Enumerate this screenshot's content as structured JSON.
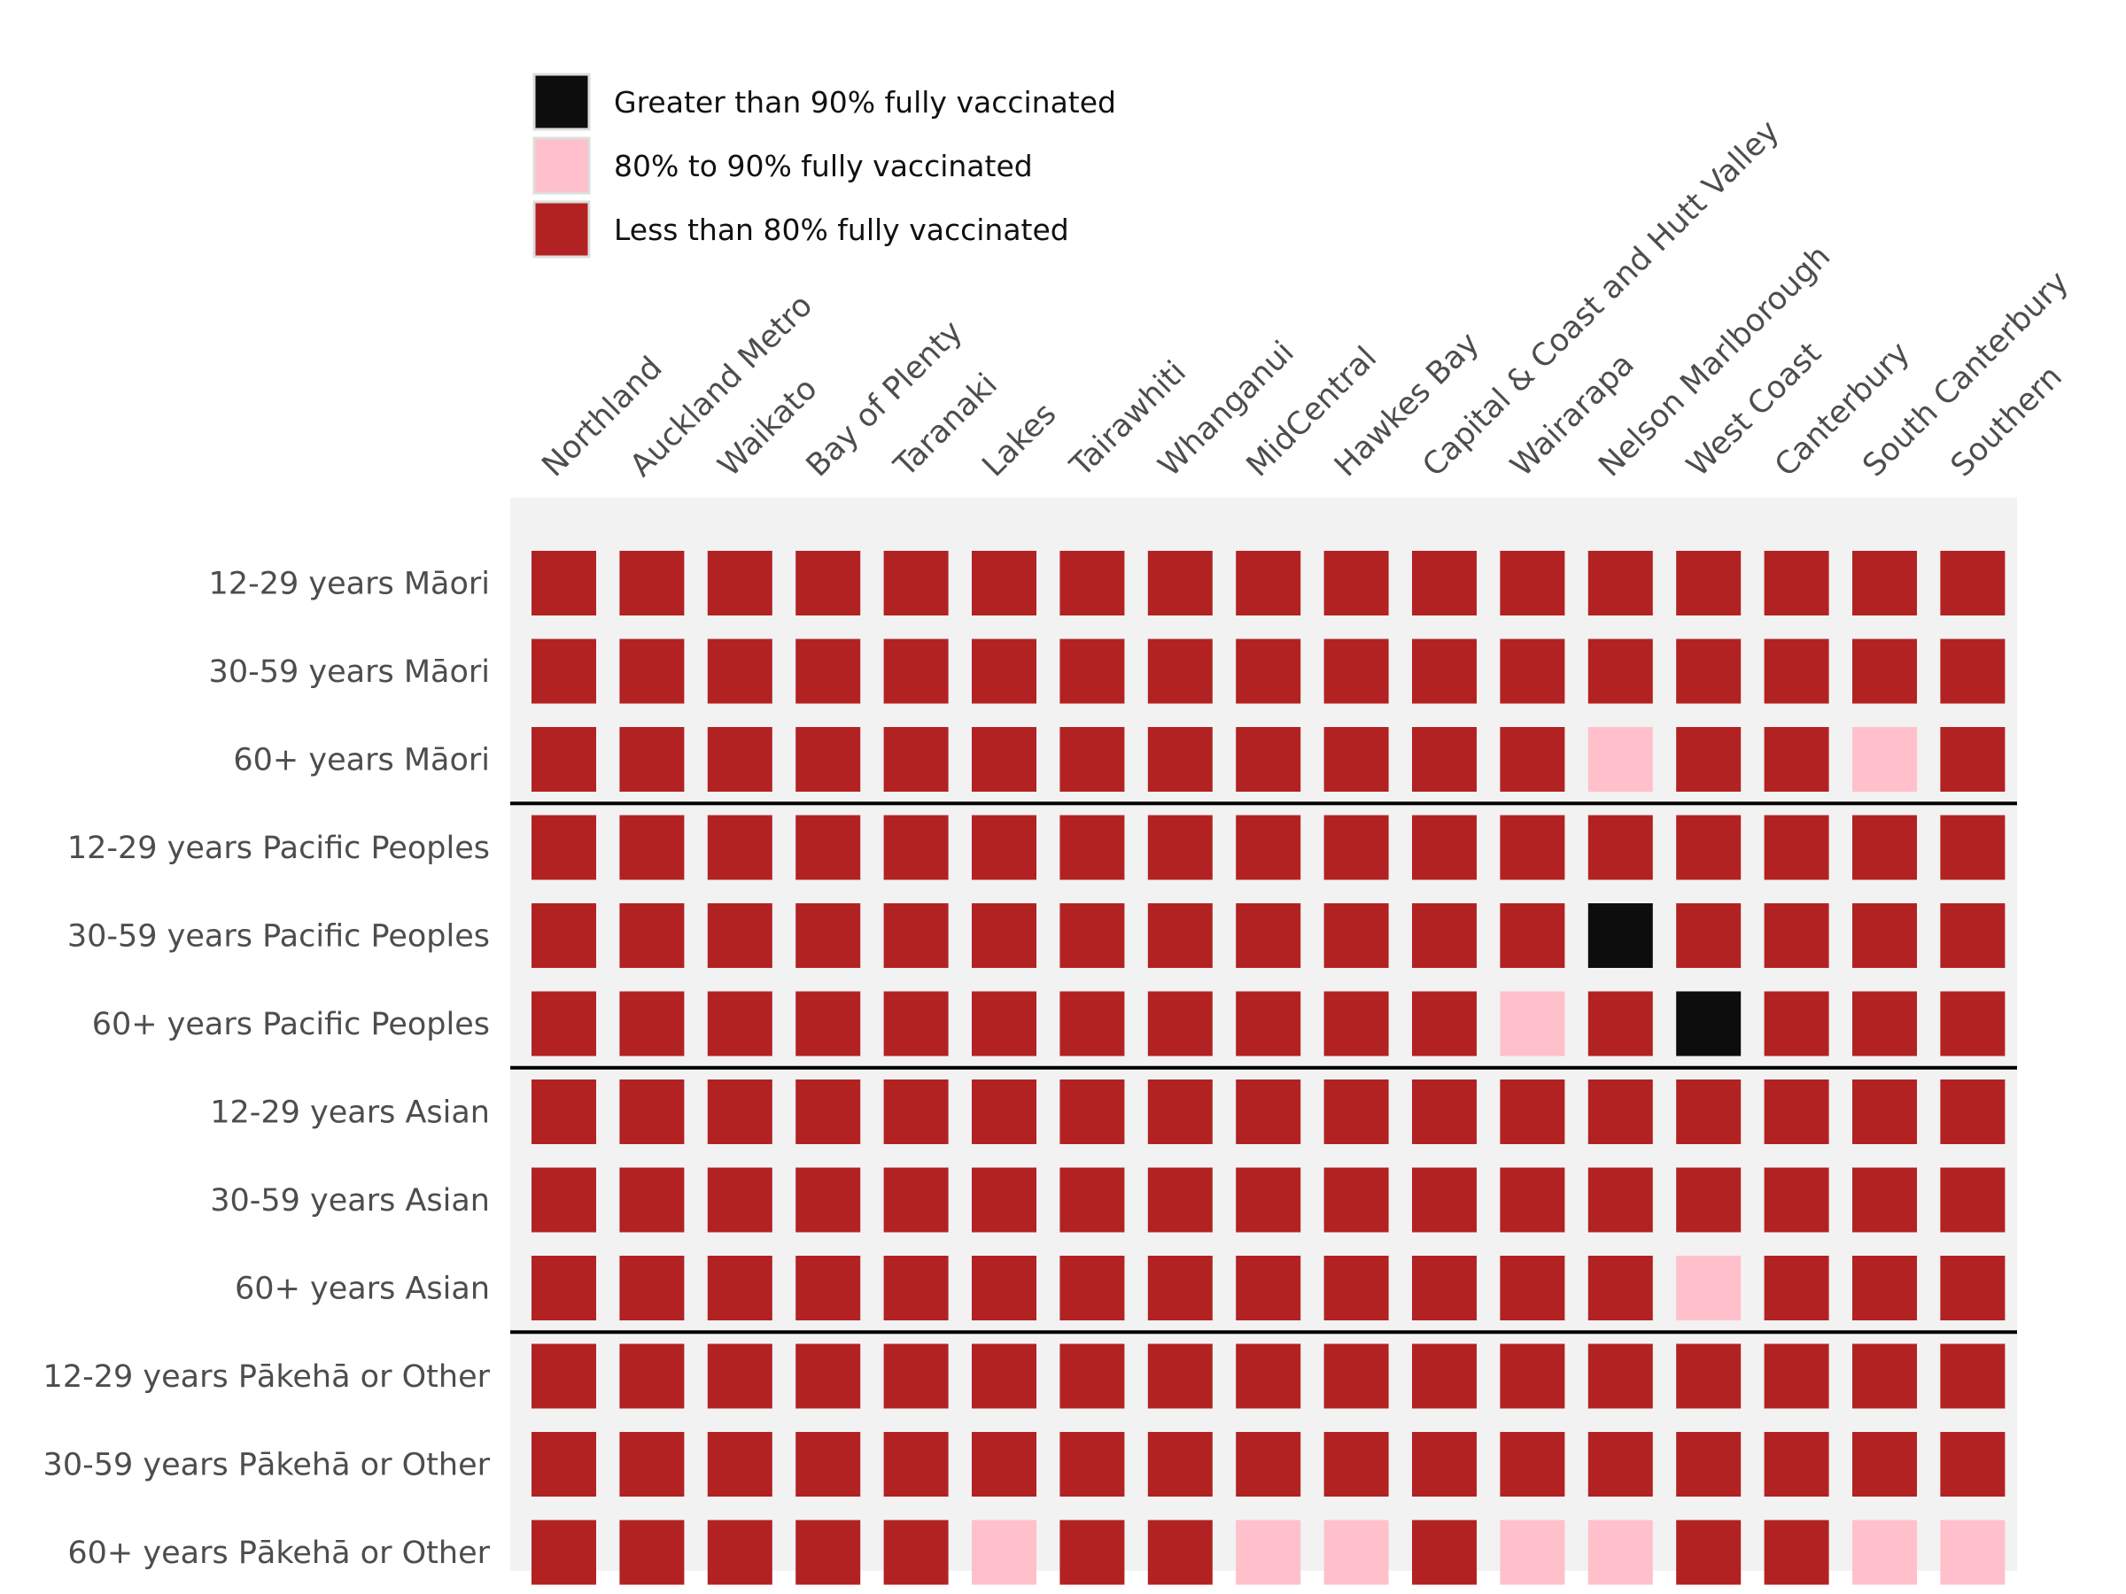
{
  "chart_data": {
    "type": "heatmap",
    "legend": [
      {
        "code": "G",
        "label": "Greater than 90% fully vaccinated",
        "color": "#0d0d0d"
      },
      {
        "code": "M",
        "label": "80% to 90% fully vaccinated",
        "color": "#ffc0cb"
      },
      {
        "code": "L",
        "label": "Less than 80% fully vaccinated",
        "color": "#b22222"
      }
    ],
    "columns": [
      "Northland",
      "Auckland Metro",
      "Waikato",
      "Bay of Plenty",
      "Taranaki",
      "Lakes",
      "Tairawhiti",
      "Whanganui",
      "MidCentral",
      "Hawkes Bay",
      "Capital & Coast and Hutt Valley",
      "Wairarapa",
      "Nelson Marlborough",
      "West Coast",
      "Canterbury",
      "South Canterbury",
      "Southern"
    ],
    "rows": [
      "12-29 years Māori",
      "30-59 years Māori",
      "60+ years Māori",
      "12-29 years Pacific Peoples",
      "30-59 years Pacific Peoples",
      "60+ years Pacific Peoples",
      "12-29 years Asian",
      "30-59 years Asian",
      "60+ years Asian",
      "12-29 years Pākehā or Other",
      "30-59 years Pākehā or Other",
      "60+ years Pākehā or Other"
    ],
    "values": [
      [
        "L",
        "L",
        "L",
        "L",
        "L",
        "L",
        "L",
        "L",
        "L",
        "L",
        "L",
        "L",
        "L",
        "L",
        "L",
        "L",
        "L"
      ],
      [
        "L",
        "L",
        "L",
        "L",
        "L",
        "L",
        "L",
        "L",
        "L",
        "L",
        "L",
        "L",
        "L",
        "L",
        "L",
        "L",
        "L"
      ],
      [
        "L",
        "L",
        "L",
        "L",
        "L",
        "L",
        "L",
        "L",
        "L",
        "L",
        "L",
        "L",
        "M",
        "L",
        "L",
        "M",
        "L"
      ],
      [
        "L",
        "L",
        "L",
        "L",
        "L",
        "L",
        "L",
        "L",
        "L",
        "L",
        "L",
        "L",
        "L",
        "L",
        "L",
        "L",
        "L"
      ],
      [
        "L",
        "L",
        "L",
        "L",
        "L",
        "L",
        "L",
        "L",
        "L",
        "L",
        "L",
        "L",
        "G",
        "L",
        "L",
        "L",
        "L"
      ],
      [
        "L",
        "L",
        "L",
        "L",
        "L",
        "L",
        "L",
        "L",
        "L",
        "L",
        "L",
        "M",
        "L",
        "G",
        "L",
        "L",
        "L"
      ],
      [
        "L",
        "L",
        "L",
        "L",
        "L",
        "L",
        "L",
        "L",
        "L",
        "L",
        "L",
        "L",
        "L",
        "L",
        "L",
        "L",
        "L"
      ],
      [
        "L",
        "L",
        "L",
        "L",
        "L",
        "L",
        "L",
        "L",
        "L",
        "L",
        "L",
        "L",
        "L",
        "L",
        "L",
        "L",
        "L"
      ],
      [
        "L",
        "L",
        "L",
        "L",
        "L",
        "L",
        "L",
        "L",
        "L",
        "L",
        "L",
        "L",
        "L",
        "M",
        "L",
        "L",
        "L"
      ],
      [
        "L",
        "L",
        "L",
        "L",
        "L",
        "L",
        "L",
        "L",
        "L",
        "L",
        "L",
        "L",
        "L",
        "L",
        "L",
        "L",
        "L"
      ],
      [
        "L",
        "L",
        "L",
        "L",
        "L",
        "L",
        "L",
        "L",
        "L",
        "L",
        "L",
        "L",
        "L",
        "L",
        "L",
        "L",
        "L"
      ],
      [
        "L",
        "L",
        "L",
        "L",
        "L",
        "M",
        "L",
        "L",
        "M",
        "M",
        "L",
        "M",
        "M",
        "L",
        "L",
        "M",
        "M"
      ]
    ],
    "group_separators_after_rows": [
      3,
      6,
      9
    ],
    "panel_background": "#f2f2f2",
    "separator_color": "#000000"
  }
}
